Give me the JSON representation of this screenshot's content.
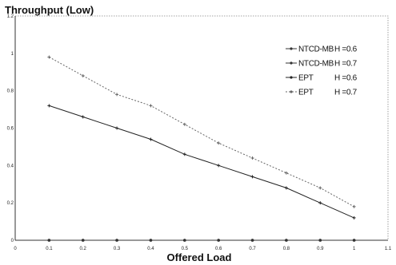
{
  "chart_data": {
    "type": "line",
    "title": "Throughput (Low)",
    "xlabel": "Offered Load",
    "ylabel": "",
    "xlim": [
      0,
      1.1
    ],
    "ylim": [
      0,
      1.2
    ],
    "x_ticks": [
      "0",
      "0.1",
      "0.2",
      "0.3",
      "0.4",
      "0.5",
      "0.6",
      "0.7",
      "0.8",
      "0.9",
      "1",
      "1.1"
    ],
    "y_ticks": [
      "0",
      "0.2",
      "0.4",
      "0.6",
      "0.8",
      "1",
      "1.2"
    ],
    "legend_position": "top-right",
    "grid": false,
    "x": [
      0.1,
      0.2,
      0.3,
      0.4,
      0.5,
      0.6,
      0.7,
      0.8,
      0.9,
      1.0
    ],
    "series": [
      {
        "name": "NTCD-MB",
        "h_label": "H =0.6",
        "values": [
          0,
          0,
          0,
          0,
          0,
          0,
          0,
          0,
          0,
          0
        ],
        "color": "#333333",
        "dash": "solid",
        "marker": "dot"
      },
      {
        "name": "NTCD-MB",
        "h_label": "H =0.7",
        "values": [
          0,
          0,
          0,
          0,
          0,
          0,
          0,
          0,
          0,
          0
        ],
        "color": "#333333",
        "dash": "solid",
        "marker": "dot"
      },
      {
        "name": "EPT",
        "h_label": "H =0.6",
        "values": [
          0.72,
          0.66,
          0.6,
          0.54,
          0.46,
          0.4,
          0.34,
          0.28,
          0.2,
          0.12
        ],
        "color": "#222222",
        "dash": "solid",
        "marker": "plus"
      },
      {
        "name": "EPT",
        "h_label": "H =0.7",
        "values": [
          0.98,
          0.88,
          0.78,
          0.72,
          0.62,
          0.52,
          0.44,
          0.36,
          0.28,
          0.18
        ],
        "color": "#666666",
        "dash": "dotted",
        "marker": "plus"
      }
    ]
  }
}
